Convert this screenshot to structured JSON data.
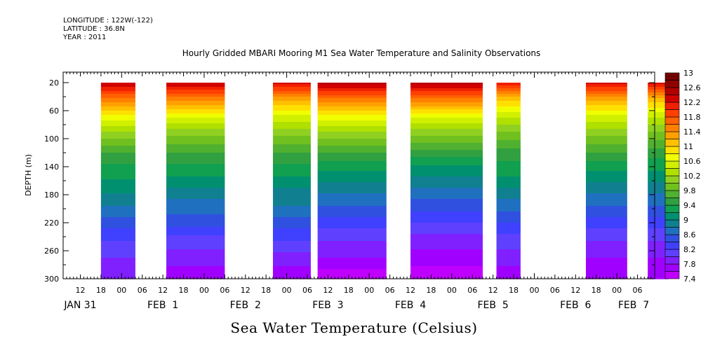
{
  "header": {
    "longitude": "LONGITUDE : 122W(-122)",
    "latitude": "LATITUDE : 36.8N",
    "year": "YEAR : 2011"
  },
  "chart_data": {
    "type": "heatmap",
    "title": "Hourly Gridded MBARI Mooring M1 Sea Water Temperature and Salinity Observations",
    "ylabel": "DEPTH (m)",
    "colorbar_title": "Sea Water Temperature (Celsius)",
    "x_range": [
      "2011-01-31T07:00",
      "2011-02-07T11:00"
    ],
    "y_range": [
      300,
      5
    ],
    "y_inverted": true,
    "y_ticks": [
      20,
      60,
      100,
      140,
      180,
      220,
      260,
      300
    ],
    "x_hour_tick_labels": [
      "12",
      "18",
      "00",
      "06",
      "12",
      "18",
      "00",
      "06",
      "12",
      "18",
      "00",
      "06",
      "12",
      "18",
      "00",
      "06",
      "12",
      "18",
      "00",
      "06",
      "12",
      "18",
      "00",
      "06",
      "12",
      "18",
      "00",
      "06",
      "12",
      "18",
      "00",
      "06"
    ],
    "x_day_labels": [
      "JAN 31",
      "FEB  1",
      "FEB  2",
      "FEB  3",
      "FEB  4",
      "FEB  5",
      "FEB  6",
      "FEB  7"
    ],
    "colorbar": {
      "levels": [
        7.4,
        7.6,
        7.8,
        8.0,
        8.2,
        8.4,
        8.6,
        8.8,
        9.0,
        9.2,
        9.4,
        9.6,
        9.8,
        10.0,
        10.2,
        10.4,
        10.6,
        10.8,
        11.0,
        11.2,
        11.4,
        11.6,
        11.8,
        12.0,
        12.2,
        12.4,
        12.6,
        12.8,
        13.0
      ],
      "tick_labels": [
        "7.4",
        "7.8",
        "8.2",
        "8.6",
        "9",
        "9.4",
        "9.8",
        "10.2",
        "10.6",
        "11",
        "11.4",
        "11.8",
        "12.2",
        "12.6",
        "13"
      ],
      "colors": [
        "#c000ff",
        "#a000ff",
        "#8020ff",
        "#6040ff",
        "#4040ff",
        "#3050e0",
        "#2070c0",
        "#108090",
        "#009070",
        "#10a050",
        "#30a040",
        "#50b030",
        "#70c020",
        "#90d020",
        "#b0e000",
        "#d0f000",
        "#f0ff00",
        "#ffe000",
        "#ffc000",
        "#ffa000",
        "#ff8000",
        "#ff6000",
        "#ff4000",
        "#f02000",
        "#d00000",
        "#b00000",
        "#900000",
        "#700000"
      ]
    },
    "segments": [
      {
        "start": "2011-01-31T18:00",
        "end": "2011-02-01T04:00",
        "mean_temps": [
          12.4,
          11.5,
          10.7,
          10.1,
          9.6,
          9.3,
          9.1,
          8.8,
          8.5,
          8.2,
          8.0,
          7.8
        ]
      },
      {
        "start": "2011-02-01T13:00",
        "end": "2011-02-02T06:00",
        "mean_temps": [
          12.4,
          11.4,
          10.6,
          10.0,
          9.6,
          9.3,
          9.0,
          8.7,
          8.5,
          8.1,
          7.9,
          7.7
        ]
      },
      {
        "start": "2011-02-02T20:00",
        "end": "2011-02-03T07:00",
        "mean_temps": [
          12.3,
          11.2,
          10.5,
          10.0,
          9.6,
          9.3,
          9.0,
          8.8,
          8.5,
          8.2,
          7.9,
          7.7
        ]
      },
      {
        "start": "2011-02-03T09:00",
        "end": "2011-02-04T05:00",
        "mean_temps": [
          12.5,
          11.5,
          10.7,
          10.1,
          9.6,
          9.2,
          8.9,
          8.6,
          8.3,
          8.0,
          7.8,
          7.5
        ]
      },
      {
        "start": "2011-02-04T12:00",
        "end": "2011-02-05T09:00",
        "mean_temps": [
          12.5,
          11.5,
          10.6,
          10.0,
          9.5,
          9.1,
          8.8,
          8.5,
          8.2,
          7.9,
          7.7,
          7.5
        ]
      },
      {
        "start": "2011-02-05T13:00",
        "end": "2011-02-05T20:00",
        "mean_temps": [
          12.2,
          11.0,
          10.4,
          9.9,
          9.5,
          9.3,
          9.0,
          8.7,
          8.4,
          8.1,
          7.9,
          7.7
        ]
      },
      {
        "start": "2011-02-06T15:00",
        "end": "2011-02-07T03:00",
        "mean_temps": [
          12.3,
          11.2,
          10.5,
          10.0,
          9.6,
          9.2,
          8.9,
          8.6,
          8.3,
          8.0,
          7.8,
          7.6
        ]
      },
      {
        "start": "2011-02-07T09:00",
        "end": "2011-02-07T15:00",
        "mean_temps": [
          12.3,
          11.1,
          10.4,
          9.9,
          9.5,
          9.2,
          8.9,
          8.6,
          8.3,
          8.0,
          7.8,
          7.6
        ]
      }
    ],
    "depths": [
      20,
      45,
      70,
      95,
      120,
      145,
      170,
      195,
      220,
      245,
      270,
      295
    ]
  }
}
